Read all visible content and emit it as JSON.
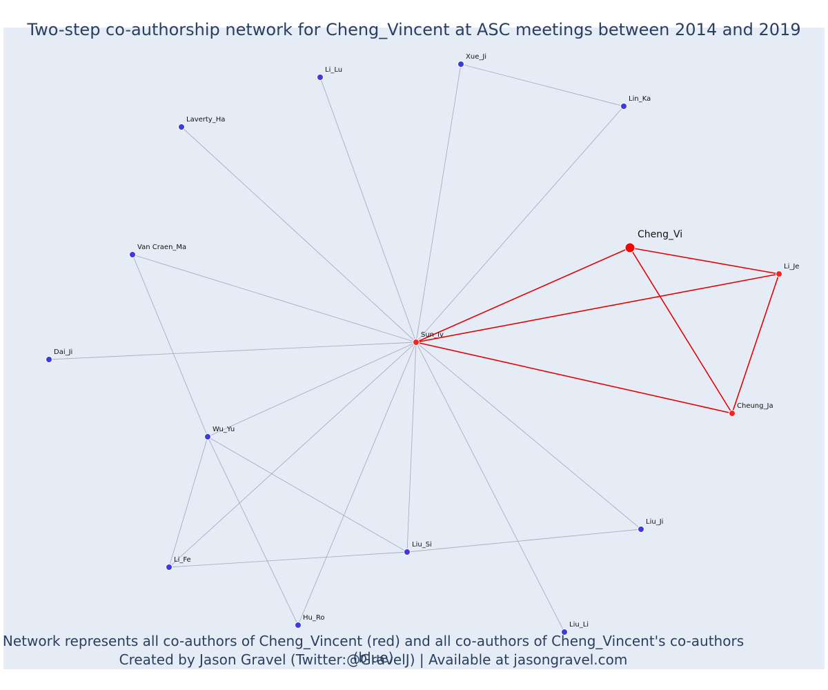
{
  "title": "Two-step co-authorship network for Cheng_Vincent at ASC meetings between 2014 and 2019",
  "footer": {
    "line1": "Network represents all co-authors of Cheng_Vincent (red) and all co-authors of Cheng_Vincent's co-authors (blue)",
    "line2": "Created by Jason Gravel (Twitter:@GravelJ) | Available at jasongravel.com"
  },
  "colors": {
    "background": "#e5ecf6",
    "focal_color": "#ff0000",
    "coauthor_color": "#ff2020",
    "second_step_color": "#3b3bde",
    "focal_edge": "#e60000",
    "other_edge": "#a9acbf",
    "text": "#2a3f5f"
  },
  "nodes": [
    {
      "id": "Cheng_Vi",
      "label": "Cheng_Vi",
      "group": "focal"
    },
    {
      "id": "Sun_Iv",
      "label": "Sun_Iv",
      "group": "coauthor"
    },
    {
      "id": "Li_Je",
      "label": "Li_Je",
      "group": "coauthor"
    },
    {
      "id": "Cheung_Ja",
      "label": "Cheung_Ja",
      "group": "coauthor"
    },
    {
      "id": "Xue_Ji",
      "label": "Xue_Ji",
      "group": "second"
    },
    {
      "id": "Li_Lu",
      "label": "Li_Lu",
      "group": "second"
    },
    {
      "id": "Lin_Ka",
      "label": "Lin_Ka",
      "group": "second"
    },
    {
      "id": "Laverty_Ha",
      "label": "Laverty_Ha",
      "group": "second"
    },
    {
      "id": "Van Craen_Ma",
      "label": "Van Craen_Ma",
      "group": "second"
    },
    {
      "id": "Dai_Ji",
      "label": "Dai_Ji",
      "group": "second"
    },
    {
      "id": "Wu_Yu",
      "label": "Wu_Yu",
      "group": "second"
    },
    {
      "id": "Li_Fe",
      "label": "Li_Fe",
      "group": "second"
    },
    {
      "id": "Liu_Si",
      "label": "Liu_Si",
      "group": "second"
    },
    {
      "id": "Liu_Ji",
      "label": "Liu_Ji",
      "group": "second"
    },
    {
      "id": "Hu_Ro",
      "label": "Hu_Ro",
      "group": "second"
    },
    {
      "id": "Liu_Li",
      "label": "Liu_Li",
      "group": "second"
    }
  ],
  "edges": [
    [
      "Cheng_Vi",
      "Sun_Iv",
      "focal"
    ],
    [
      "Cheng_Vi",
      "Li_Je",
      "focal"
    ],
    [
      "Cheng_Vi",
      "Cheung_Ja",
      "focal"
    ],
    [
      "Sun_Iv",
      "Li_Je",
      "focal"
    ],
    [
      "Sun_Iv",
      "Cheung_Ja",
      "focal"
    ],
    [
      "Li_Je",
      "Cheung_Ja",
      "focal"
    ],
    [
      "Sun_Iv",
      "Xue_Ji",
      "other"
    ],
    [
      "Sun_Iv",
      "Li_Lu",
      "other"
    ],
    [
      "Sun_Iv",
      "Lin_Ka",
      "other"
    ],
    [
      "Sun_Iv",
      "Laverty_Ha",
      "other"
    ],
    [
      "Sun_Iv",
      "Van Craen_Ma",
      "other"
    ],
    [
      "Sun_Iv",
      "Dai_Ji",
      "other"
    ],
    [
      "Sun_Iv",
      "Wu_Yu",
      "other"
    ],
    [
      "Sun_Iv",
      "Li_Fe",
      "other"
    ],
    [
      "Sun_Iv",
      "Liu_Si",
      "other"
    ],
    [
      "Sun_Iv",
      "Liu_Ji",
      "other"
    ],
    [
      "Sun_Iv",
      "Hu_Ro",
      "other"
    ],
    [
      "Sun_Iv",
      "Liu_Li",
      "other"
    ],
    [
      "Xue_Ji",
      "Lin_Ka",
      "other"
    ],
    [
      "Van Craen_Ma",
      "Wu_Yu",
      "other"
    ],
    [
      "Wu_Yu",
      "Li_Fe",
      "other"
    ],
    [
      "Wu_Yu",
      "Liu_Si",
      "other"
    ],
    [
      "Wu_Yu",
      "Hu_Ro",
      "other"
    ],
    [
      "Li_Fe",
      "Liu_Si",
      "other"
    ],
    [
      "Liu_Si",
      "Liu_Ji",
      "other"
    ]
  ]
}
